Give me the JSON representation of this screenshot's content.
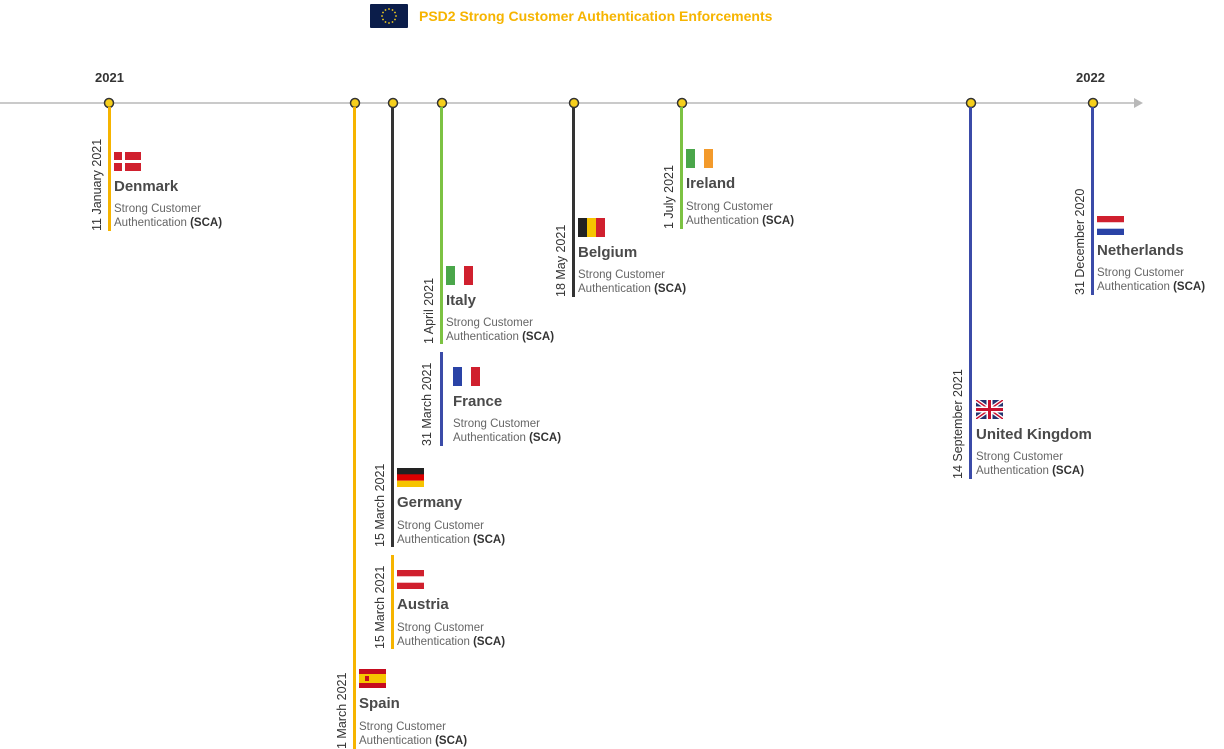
{
  "title": "PSD2 Strong Customer Authentication Enforcements",
  "colors": {
    "yellow": "#f6b400",
    "black": "#333333",
    "green": "#7cc243",
    "blue": "#3b4ba8",
    "axis": "#b9b9b9",
    "dot": "#f6cf1c"
  },
  "axis": {
    "years": [
      "2021",
      "2022"
    ]
  },
  "desc_prefix": "Strong Customer",
  "desc_line2": "Authentication",
  "desc_bold": "(SCA)",
  "events": [
    {
      "id": "denmark",
      "country": "Denmark",
      "date": "11 January 2021",
      "flag": "denmark-flag",
      "color": "yellow"
    },
    {
      "id": "spain",
      "country": "Spain",
      "date": "1 March 2021",
      "flag": "spain-flag",
      "color": "yellow"
    },
    {
      "id": "germany",
      "country": "Germany",
      "date": "15 March 2021",
      "flag": "germany-flag",
      "color": "black"
    },
    {
      "id": "austria",
      "country": "Austria",
      "date": "15 March 2021",
      "flag": "austria-flag",
      "color": "yellow"
    },
    {
      "id": "italy",
      "country": "Italy",
      "date": "1 April 2021",
      "flag": "italy-flag",
      "color": "green"
    },
    {
      "id": "france",
      "country": "France",
      "date": "31 March 2021",
      "flag": "france-flag",
      "color": "blue"
    },
    {
      "id": "belgium",
      "country": "Belgium",
      "date": "18 May 2021",
      "flag": "belgium-flag",
      "color": "black"
    },
    {
      "id": "ireland",
      "country": "Ireland",
      "date": "1 July 2021",
      "flag": "ireland-flag",
      "color": "green"
    },
    {
      "id": "uk",
      "country": "United Kingdom",
      "date": "14 September 2021",
      "flag": "uk-flag",
      "color": "blue"
    },
    {
      "id": "netherlands",
      "country": "Netherlands",
      "date": "31 December 2020",
      "flag": "netherlands-flag",
      "color": "blue"
    }
  ]
}
